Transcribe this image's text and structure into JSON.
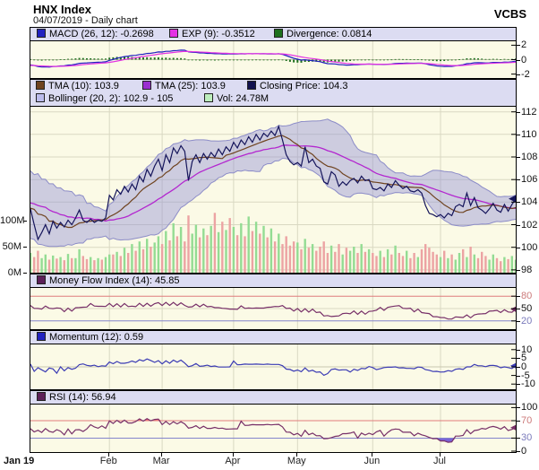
{
  "header": {
    "title": "HNX Index",
    "subtitle": "04/07/2019 - Daily chart",
    "brand": "VCBS"
  },
  "panels": {
    "macd": {
      "legend": [
        {
          "label": "MACD (26, 12): -0.2698",
          "color": "#2222c0"
        },
        {
          "label": "EXP (9): -0.3512",
          "color": "#e431e4"
        },
        {
          "label": "Divergence: 0.0814",
          "color": "#1e701e"
        }
      ],
      "ticks": [
        {
          "v": 2,
          "label": "2"
        },
        {
          "v": 0,
          "label": "0"
        },
        {
          "v": -2,
          "label": "-2"
        }
      ]
    },
    "main": {
      "legend_row1": [
        {
          "label": "TMA (10): 103.9",
          "color": "#6f431f"
        },
        {
          "label": "TMA (25): 103.9",
          "color": "#9b2fd0"
        },
        {
          "label": "Closing Price: 104.3",
          "color": "#11114e"
        }
      ],
      "legend_row2": [
        {
          "label": "Bollinger (20, 2): 102.9 - 105",
          "color": "#bcbcec"
        },
        {
          "label": "Vol: 24.78M",
          "color": "#bdeebd"
        }
      ],
      "ticks": [
        {
          "v": 112,
          "label": "112"
        },
        {
          "v": 110,
          "label": "110"
        },
        {
          "v": 108,
          "label": "108"
        },
        {
          "v": 106,
          "label": "106"
        },
        {
          "v": 104,
          "label": "104"
        },
        {
          "v": 102,
          "label": "102"
        },
        {
          "v": 100,
          "label": "100"
        },
        {
          "v": 98,
          "label": "98"
        }
      ],
      "vol_ticks": [
        {
          "v": 100,
          "label": "100M"
        },
        {
          "v": 50,
          "label": "50M"
        },
        {
          "v": 0,
          "label": "0M"
        }
      ]
    },
    "mfi": {
      "legend": [
        {
          "label": "Money Flow Index (14): 45.85",
          "color": "#5c2058"
        }
      ],
      "ticks": [
        {
          "v": 80,
          "label": "80",
          "color": "#cc7a7a"
        },
        {
          "v": 50,
          "label": "50"
        },
        {
          "v": 20,
          "label": "20",
          "color": "#7a7abb"
        }
      ]
    },
    "momentum": {
      "legend": [
        {
          "label": "Momentum (12): 0.59",
          "color": "#2222c0"
        }
      ],
      "ticks": [
        {
          "v": 10,
          "label": "10"
        },
        {
          "v": 5,
          "label": "5"
        },
        {
          "v": 0,
          "label": "0"
        },
        {
          "v": -5,
          "label": "-5"
        },
        {
          "v": -10,
          "label": "-10"
        }
      ]
    },
    "rsi": {
      "legend": [
        {
          "label": "RSI (14): 56.94",
          "color": "#5c2058"
        }
      ],
      "ticks": [
        {
          "v": 100,
          "label": "100"
        },
        {
          "v": 70,
          "label": "70",
          "color": "#cc7a7a"
        },
        {
          "v": 30,
          "label": "30",
          "color": "#7a7abb"
        },
        {
          "v": 0,
          "label": "0"
        }
      ]
    }
  },
  "chart_data": {
    "type": "line-multi-panel-stock",
    "title": "HNX Index",
    "subtitle": "04/07/2019 - Daily chart",
    "x_axis": {
      "start_label": "Jan 19",
      "month_labels": [
        "Feb",
        "Mar",
        "Apr",
        "May",
        "Jun",
        "Jul"
      ],
      "month_start_index": [
        21,
        35,
        54,
        71,
        91,
        109
      ],
      "n_points": 130
    },
    "price_axis": {
      "ylim": [
        98,
        112
      ],
      "grid_step": 2
    },
    "volume_axis": {
      "ticks_m": [
        100,
        50,
        0
      ]
    },
    "indicator_values": {
      "macd_26_12": -0.2698,
      "exp_9": -0.3512,
      "divergence": 0.0814,
      "tma_10": 103.9,
      "tma_25": 103.9,
      "closing_price": 104.3,
      "bollinger_20_2": "102.9 - 105",
      "volume": "24.78M",
      "money_flow_index_14": 45.85,
      "momentum_12": 0.59,
      "rsi_14": 56.94
    },
    "close_lead_in": [
      107.0,
      106.2,
      104.0,
      106.5,
      103.2,
      105.8,
      102.4,
      105.2,
      101.8,
      104.6,
      101.2,
      103.0,
      104.9,
      101.9,
      103.5,
      105.4,
      102.2,
      104.1,
      102.8,
      103.4
    ],
    "volume_lead_in": [
      45,
      38,
      52,
      40,
      35,
      48,
      42,
      55,
      38,
      44,
      50,
      36,
      42,
      46,
      39,
      52,
      44,
      38,
      47,
      41
    ],
    "close": [
      103.4,
      102.0,
      100.7,
      101.3,
      102.0,
      101.2,
      102.3,
      101.7,
      102.2,
      101.8,
      102.4,
      102.0,
      102.6,
      103.3,
      102.4,
      102.2,
      102.5,
      102.2,
      102.4,
      102.3,
      102.6,
      104.6,
      104.2,
      105.1,
      104.7,
      105.4,
      104.9,
      105.6,
      105.1,
      106.3,
      105.8,
      106.9,
      106.3,
      107.2,
      107.8,
      106.8,
      108.2,
      107.5,
      108.8,
      108.3,
      109.0,
      108.5,
      105.9,
      107.6,
      108.2,
      107.5,
      108.3,
      107.8,
      108.4,
      108.0,
      108.7,
      108.2,
      108.9,
      108.5,
      109.3,
      108.8,
      109.5,
      109.1,
      109.8,
      109.3,
      110.0,
      109.5,
      110.1,
      109.8,
      110.3,
      109.9,
      110.7,
      109.5,
      108.2,
      107.6,
      107.3,
      107.5,
      107.2,
      108.9,
      107.5,
      107.8,
      107.2,
      107.0,
      105.8,
      105.6,
      106.7,
      106.4,
      105.4,
      105.8,
      105.5,
      105.9,
      106.1,
      105.7,
      106.3,
      105.9,
      106.0,
      105.2,
      105.1,
      105.3,
      105.0,
      105.6,
      105.3,
      105.9,
      105.5,
      105.2,
      105.4,
      105.0,
      104.9,
      105.1,
      104.8,
      103.7,
      103.0,
      102.9,
      102.7,
      102.9,
      102.6,
      103.0,
      102.8,
      103.6,
      103.8,
      103.6,
      104.8,
      103.7,
      104.4,
      103.5,
      103.3,
      103.0,
      103.4,
      103.9,
      103.3,
      103.1,
      103.8,
      103.2,
      103.8,
      104.3
    ],
    "volume_m": [
      38,
      30,
      42,
      28,
      35,
      25,
      33,
      27,
      30,
      24,
      36,
      28,
      28,
      45,
      32,
      26,
      30,
      24,
      28,
      25,
      30,
      35,
      35,
      40,
      32,
      48,
      38,
      55,
      42,
      60,
      45,
      65,
      50,
      58,
      70,
      55,
      80,
      62,
      95,
      70,
      88,
      60,
      110,
      75,
      92,
      68,
      85,
      72,
      90,
      115,
      78,
      98,
      82,
      105,
      88,
      72,
      95,
      70,
      108,
      80,
      98,
      75,
      90,
      68,
      85,
      60,
      75,
      55,
      70,
      52,
      60,
      58,
      45,
      65,
      48,
      55,
      42,
      50,
      60,
      38,
      52,
      40,
      55,
      35,
      48,
      42,
      50,
      38,
      55,
      40,
      45,
      38,
      32,
      42,
      30,
      45,
      35,
      52,
      38,
      32,
      42,
      28,
      38,
      30,
      45,
      55,
      48,
      40,
      35,
      30,
      42,
      28,
      35,
      25,
      38,
      45,
      30,
      50,
      35,
      28,
      40,
      32,
      25,
      35,
      28,
      22,
      30,
      26,
      32,
      24.78
    ]
  }
}
